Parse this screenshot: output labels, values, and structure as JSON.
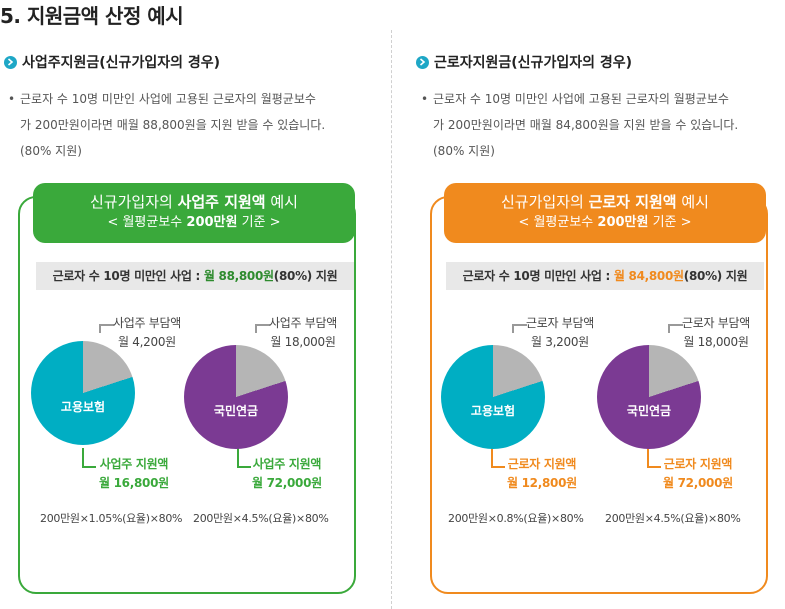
{
  "page_title": "5. 지원금액 산정 예시",
  "colors": {
    "green": "#3aa93b",
    "orange": "#f08a1e",
    "teal": "#00aec3",
    "purple": "#7b3a93",
    "grey": "#b5b5b5",
    "icon": "#1ea7c6"
  },
  "left": {
    "heading": "사업주지원금(신규가입자의 경우)",
    "bullet": "•",
    "desc_lines": [
      "근로자 수 10명 미만인 사업에 고용된 근로자의 월평균보수",
      "가 200만원이라면 매월 88,800원을 지원 받을 수 있습니다.",
      "(80% 지원)"
    ],
    "banner_pre": "신규가입자의 ",
    "banner_bold": "사업주 지원액",
    "banner_post": " 예시",
    "banner_sub_pre": "< 월평균보수 ",
    "banner_sub_bold": "200만원",
    "banner_sub_post": " 기준 >",
    "grey_pre": "근로자 수 10명 미만인 사업 : ",
    "grey_bold": "월 88,800원",
    "grey_post": "(80%) 지원",
    "pie1": {
      "label": "고용보험",
      "share_fraction": 0.2,
      "burden_title": "사업주 부담액",
      "burden_amount": "월 4,200원",
      "support_title": "사업주 지원액",
      "support_amount": "월 16,800원",
      "formula": "200만원×1.05%(요율)×80%"
    },
    "pie2": {
      "label": "국민연금",
      "share_fraction": 0.2,
      "burden_title": "사업주 부담액",
      "burden_amount": "월 18,000원",
      "support_title": "사업주 지원액",
      "support_amount": "월 72,000원",
      "formula": "200만원×4.5%(요율)×80%"
    }
  },
  "right": {
    "heading": "근로자지원금(신규가입자의 경우)",
    "bullet": "•",
    "desc_lines": [
      "근로자 수 10명 미만인 사업에 고용된 근로자의 월평균보수",
      "가 200만원이라면 매월 84,800원을 지원 받을 수 있습니다.",
      "(80% 지원)"
    ],
    "banner_pre": "신규가입자의 ",
    "banner_bold": "근로자 지원액",
    "banner_post": " 예시",
    "banner_sub_pre": "< 월평균보수 ",
    "banner_sub_bold": "200만원",
    "banner_sub_post": " 기준 >",
    "grey_pre": "근로자 수 10명 미만인 사업 : ",
    "grey_bold": "월 84,800원",
    "grey_post": "(80%) 지원",
    "pie1": {
      "label": "고용보험",
      "share_fraction": 0.2,
      "burden_title": "근로자 부담액",
      "burden_amount": "월 3,200원",
      "support_title": "근로자 지원액",
      "support_amount": "월 12,800원",
      "formula": "200만원×0.8%(요율)×80%"
    },
    "pie2": {
      "label": "국민연금",
      "share_fraction": 0.2,
      "burden_title": "근로자 부담액",
      "burden_amount": "월 18,000원",
      "support_title": "근로자 지원액",
      "support_amount": "월 72,000원",
      "formula": "200만원×4.5%(요율)×80%"
    }
  }
}
